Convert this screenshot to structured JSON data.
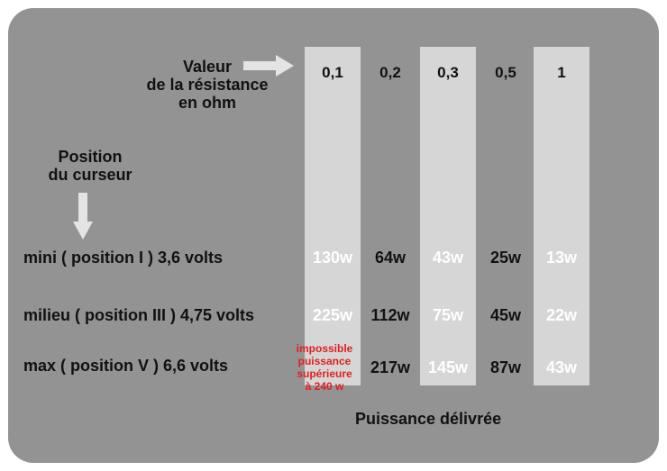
{
  "header": {
    "resistance_label_line1": "Valeur",
    "resistance_label_line2": "de la résistance",
    "resistance_label_line3": "en ohm",
    "cursor_label_line1": "Position",
    "cursor_label_line2": "du curseur"
  },
  "resistances": [
    "0,1",
    "0,2",
    "0,3",
    "0,5",
    "1"
  ],
  "rows": [
    {
      "label": "mini ( position I ) 3,6 volts",
      "cells": [
        "130w",
        "64w",
        "43w",
        "25w",
        "13w"
      ]
    },
    {
      "label": "milieu ( position III ) 4,75 volts",
      "cells": [
        "225w",
        "112w",
        "75w",
        "45w",
        "22w"
      ]
    },
    {
      "label": "max ( position V ) 6,6 volts",
      "cells": [
        "",
        "217w",
        "145w",
        "87w",
        "43w"
      ]
    }
  ],
  "impossible_note": {
    "line1": "impossible",
    "line2": "puissance",
    "line3": "supérieure",
    "line4": "à 240 w"
  },
  "footer": "Puissance délivrée",
  "colors": {
    "background": "#939393",
    "highlight_column": "#d6d6d6",
    "warning_text": "#e02020"
  },
  "icons": [
    "arrow-right-icon",
    "arrow-down-icon"
  ]
}
